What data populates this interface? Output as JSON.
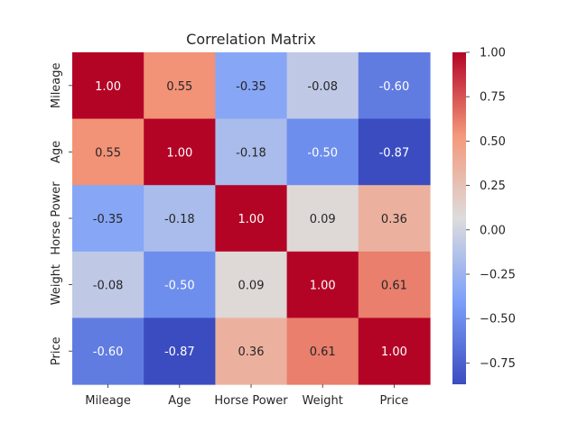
{
  "chart_data": {
    "type": "heatmap",
    "title": "Correlation Matrix",
    "xlabel": "",
    "ylabel": "",
    "x_categories": [
      "Mileage",
      "Age",
      "Horse Power",
      "Weight",
      "Price"
    ],
    "y_categories": [
      "Mileage",
      "Age",
      "Horse Power",
      "Weight",
      "Price"
    ],
    "matrix": [
      [
        1.0,
        0.55,
        -0.35,
        -0.08,
        -0.6
      ],
      [
        0.55,
        1.0,
        -0.18,
        -0.5,
        -0.87
      ],
      [
        -0.35,
        -0.18,
        1.0,
        0.09,
        0.36
      ],
      [
        -0.08,
        -0.5,
        0.09,
        1.0,
        0.61
      ],
      [
        -0.6,
        -0.87,
        0.36,
        0.61,
        1.0
      ]
    ],
    "cell_labels": [
      [
        "1.00",
        "0.55",
        "-0.35",
        "-0.08",
        "-0.60"
      ],
      [
        "0.55",
        "1.00",
        "-0.18",
        "-0.50",
        "-0.87"
      ],
      [
        "-0.35",
        "-0.18",
        "1.00",
        "0.09",
        "0.36"
      ],
      [
        "-0.08",
        "-0.50",
        "0.09",
        "1.00",
        "0.61"
      ],
      [
        "-0.60",
        "-0.87",
        "0.36",
        "0.61",
        "1.00"
      ]
    ],
    "colormap": "coolwarm",
    "color_range": [
      -0.87,
      1.0
    ],
    "colorbar_ticks": [
      1.0,
      0.75,
      0.5,
      0.25,
      0.0,
      -0.25,
      -0.5,
      -0.75
    ],
    "colorbar_tick_labels": [
      "1.00",
      "0.75",
      "0.50",
      "0.25",
      "0.00",
      "−0.25",
      "−0.50",
      "−0.75"
    ],
    "colorbar_placement": "right",
    "grid": false
  }
}
